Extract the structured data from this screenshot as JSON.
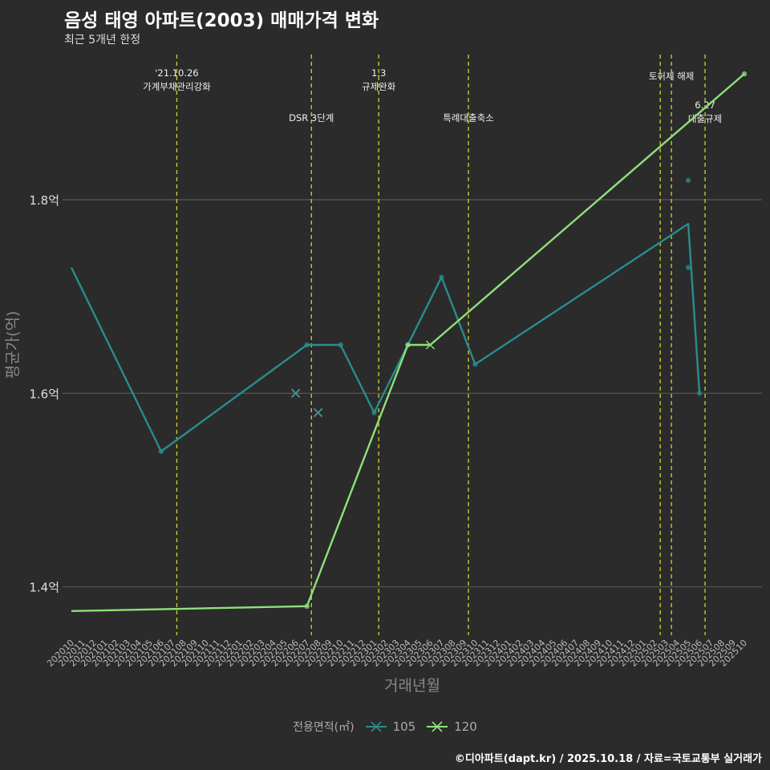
{
  "title": "음성 태영 아파트(2003) 매매가격 변화",
  "subtitle": "최근 5개년 한정",
  "footer": "©디아파트(dapt.kr) / 2025.10.18 / 자료=국토교통부 실거래가",
  "legend": {
    "title": "전용면적(㎡)",
    "items": [
      {
        "label": "105",
        "color": "#2a8c8c"
      },
      {
        "label": "120",
        "color": "#8fe07a"
      }
    ]
  },
  "chart_data": {
    "type": "line",
    "xlabel": "거래년월",
    "ylabel": "평균가(억)",
    "ylim": [
      1.35,
      1.95
    ],
    "yticks": [
      1.4,
      1.6,
      1.8
    ],
    "ytick_labels": [
      "1.4억",
      "1.6억",
      "1.8억"
    ],
    "categories": [
      "202010",
      "202011",
      "202012",
      "202101",
      "202102",
      "202103",
      "202104",
      "202105",
      "202106",
      "202107",
      "202108",
      "202109",
      "202110",
      "202111",
      "202112",
      "202201",
      "202202",
      "202203",
      "202204",
      "202205",
      "202206",
      "202207",
      "202208",
      "202209",
      "202210",
      "202211",
      "202212",
      "202301",
      "202302",
      "202303",
      "202304",
      "202305",
      "202306",
      "202307",
      "202308",
      "202309",
      "202310",
      "202311",
      "202312",
      "202401",
      "202402",
      "202403",
      "202404",
      "202405",
      "202406",
      "202407",
      "202408",
      "202409",
      "202410",
      "202411",
      "202412",
      "202501",
      "202502",
      "202503",
      "202504",
      "202505",
      "202506",
      "202507",
      "202508",
      "202509",
      "202510"
    ],
    "series": [
      {
        "name": "105",
        "color": "#2a8c8c",
        "line": [
          {
            "x": "202010",
            "y": 1.73
          },
          {
            "x": "202106",
            "y": 1.54
          },
          {
            "x": "202207",
            "y": 1.65
          },
          {
            "x": "202210",
            "y": 1.65
          },
          {
            "x": "202301",
            "y": 1.58
          },
          {
            "x": "202304",
            "y": 1.65
          },
          {
            "x": "202307",
            "y": 1.72
          },
          {
            "x": "202310",
            "y": 1.63
          },
          {
            "x": "202505",
            "y": 1.775
          },
          {
            "x": "202506",
            "y": 1.6
          }
        ],
        "points": [
          {
            "x": "202106",
            "y": 1.54
          },
          {
            "x": "202207",
            "y": 1.65
          },
          {
            "x": "202210",
            "y": 1.65
          },
          {
            "x": "202301",
            "y": 1.58
          },
          {
            "x": "202304",
            "y": 1.65
          },
          {
            "x": "202307",
            "y": 1.72
          },
          {
            "x": "202310",
            "y": 1.63
          },
          {
            "x": "202505",
            "y": 1.82
          },
          {
            "x": "202505",
            "y": 1.73
          },
          {
            "x": "202506",
            "y": 1.6
          }
        ],
        "crosses": [
          {
            "x": "202206",
            "y": 1.6
          },
          {
            "x": "202208",
            "y": 1.58
          }
        ]
      },
      {
        "name": "120",
        "color": "#8fe07a",
        "line": [
          {
            "x": "202010",
            "y": 1.375
          },
          {
            "x": "202207",
            "y": 1.38
          },
          {
            "x": "202304",
            "y": 1.65
          },
          {
            "x": "202306",
            "y": 1.65
          },
          {
            "x": "202510",
            "y": 1.93
          }
        ],
        "points": [
          {
            "x": "202207",
            "y": 1.38
          },
          {
            "x": "202304",
            "y": 1.65
          },
          {
            "x": "202510",
            "y": 1.93
          }
        ],
        "crosses": [
          {
            "x": "202306",
            "y": 1.65
          }
        ]
      }
    ],
    "events": [
      {
        "x": 9.4,
        "lines": [
          "'21.10.26",
          "가계부채관리강화"
        ],
        "row": 0
      },
      {
        "x": 21.4,
        "lines": [
          "DSR 3단계"
        ],
        "row": 1
      },
      {
        "x": 27.4,
        "lines": [
          "1.3",
          "규제완화"
        ],
        "row": 0
      },
      {
        "x": 35.4,
        "lines": [
          "특례대출축소"
        ],
        "row": 1
      },
      {
        "x": 52.5,
        "lines": [],
        "row": 0
      },
      {
        "x": 53.5,
        "lines": [
          "토허제 해제"
        ],
        "row": 0
      },
      {
        "x": 56.5,
        "lines": [
          "6.27",
          "대출규제"
        ],
        "row": 1
      }
    ],
    "event_color": "#d4d42a"
  }
}
